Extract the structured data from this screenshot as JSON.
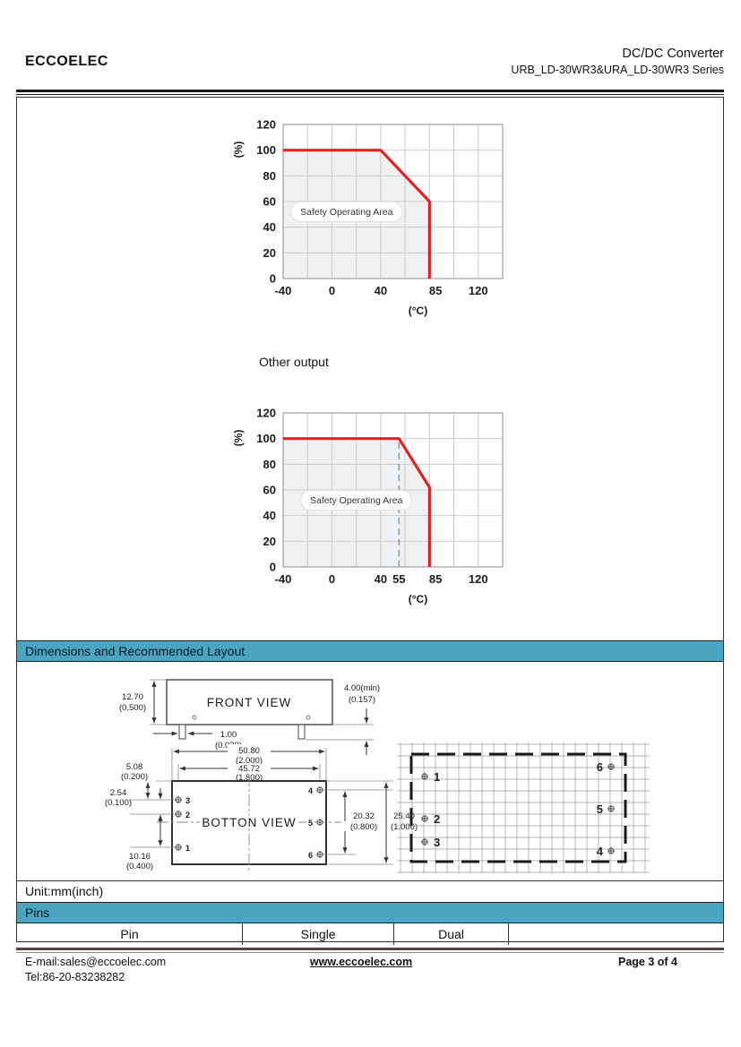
{
  "header": {
    "company": "ECCOELEC",
    "product": "DC/DC Converter",
    "series": "URB_LD-30WR3&URA_LD-30WR3  Series"
  },
  "charts_section": {
    "other_output_label": "Other output"
  },
  "chart_data": [
    {
      "type": "area",
      "name": "derating-curve-top",
      "series": [
        {
          "name": "safe-operating-limit",
          "points": [
            [
              -40,
              100
            ],
            [
              40,
              100
            ],
            [
              80,
              60
            ],
            [
              80,
              0
            ]
          ]
        }
      ],
      "area_label": "Safety Operating Area",
      "xlabel": "(°C)",
      "ylabel": "(%)",
      "xlim": [
        -40,
        140
      ],
      "ylim": [
        0,
        120
      ],
      "grid": true,
      "grid_step": 20,
      "x_ticks": [
        {
          "v": -40,
          "label": "-40"
        },
        {
          "v": 0,
          "label": "0"
        },
        {
          "v": 40,
          "label": "40"
        },
        {
          "v": 85,
          "label": "85"
        },
        {
          "v": 120,
          "label": "120"
        }
      ],
      "y_ticks": [
        {
          "v": 0,
          "label": "0"
        },
        {
          "v": 20,
          "label": "20"
        },
        {
          "v": 40,
          "label": "40"
        },
        {
          "v": 60,
          "label": "60"
        },
        {
          "v": 80,
          "label": "80"
        },
        {
          "v": 100,
          "label": "100"
        },
        {
          "v": 120,
          "label": "120"
        }
      ],
      "dashed_x": null,
      "label_center": [
        12,
        52
      ],
      "line_color": "#E42320",
      "fill_color": "#EFF1F3"
    },
    {
      "type": "area",
      "name": "derating-curve-other-output",
      "series": [
        {
          "name": "safe-operating-limit",
          "points": [
            [
              -40,
              100
            ],
            [
              55,
              100
            ],
            [
              80,
              62
            ],
            [
              80,
              0
            ]
          ]
        }
      ],
      "area_label": "Safety Operating Area",
      "xlabel": "(°C)",
      "ylabel": "(%)",
      "xlim": [
        -40,
        140
      ],
      "ylim": [
        0,
        120
      ],
      "grid": true,
      "grid_step": 20,
      "x_ticks": [
        {
          "v": -40,
          "label": "-40"
        },
        {
          "v": 0,
          "label": "0"
        },
        {
          "v": 40,
          "label": "40"
        },
        {
          "v": 55,
          "label": "55"
        },
        {
          "v": 85,
          "label": "85"
        },
        {
          "v": 120,
          "label": "120"
        }
      ],
      "y_ticks": [
        {
          "v": 0,
          "label": "0"
        },
        {
          "v": 20,
          "label": "20"
        },
        {
          "v": 40,
          "label": "40"
        },
        {
          "v": 60,
          "label": "60"
        },
        {
          "v": 80,
          "label": "80"
        },
        {
          "v": 100,
          "label": "100"
        },
        {
          "v": 120,
          "label": "120"
        }
      ],
      "dashed_x": 55,
      "label_center": [
        20,
        52
      ],
      "line_color": "#E42320",
      "fill_color": "#EFF1F3"
    }
  ],
  "dimensions_section": {
    "title": "Dimensions and Recommended Layout",
    "unit_label": "Unit:mm(inch)",
    "front_view": {
      "title": "FRONT VIEW",
      "height": [
        "12.70",
        "(0.500)"
      ],
      "pin_dia": [
        "1.00",
        "(0.039)"
      ],
      "pin_len": [
        "4.00(min)",
        "(0.157)"
      ]
    },
    "bottom_view": {
      "title": "BOTTON VIEW",
      "width": [
        "50.80",
        "(2.000)"
      ],
      "pin_span": [
        "45.72",
        "(1.800)"
      ],
      "left_top": [
        "5.08",
        "(0.200)"
      ],
      "left_mid": [
        "2.54",
        "(0.100)"
      ],
      "left_bot": [
        "10.16",
        "(0.400)"
      ],
      "right_inner": [
        "20.32",
        "(0.800)"
      ],
      "right_outer": [
        "25.40",
        "(1.000)"
      ],
      "pin_labels_left": [
        "3",
        "2",
        "1"
      ],
      "pin_labels_right": [
        "4",
        "5",
        "6"
      ]
    },
    "layout": {
      "pin_labels_left": [
        "1",
        "2",
        "3"
      ],
      "pin_labels_right": [
        "6",
        "5",
        "4"
      ]
    }
  },
  "pins_section": {
    "title": "Pins",
    "columns": [
      "Pin",
      "Single",
      "Dual",
      ""
    ]
  },
  "footer": {
    "email": "E-mail:sales@eccoelec.com",
    "tel": "Tel:86-20-83238282",
    "website": "www.eccoelec.com",
    "page": "Page 3 of 4"
  },
  "colors": {
    "accent": "#4AA5C2",
    "chart_red": "#E42320",
    "footer_line": "#5A4142"
  }
}
